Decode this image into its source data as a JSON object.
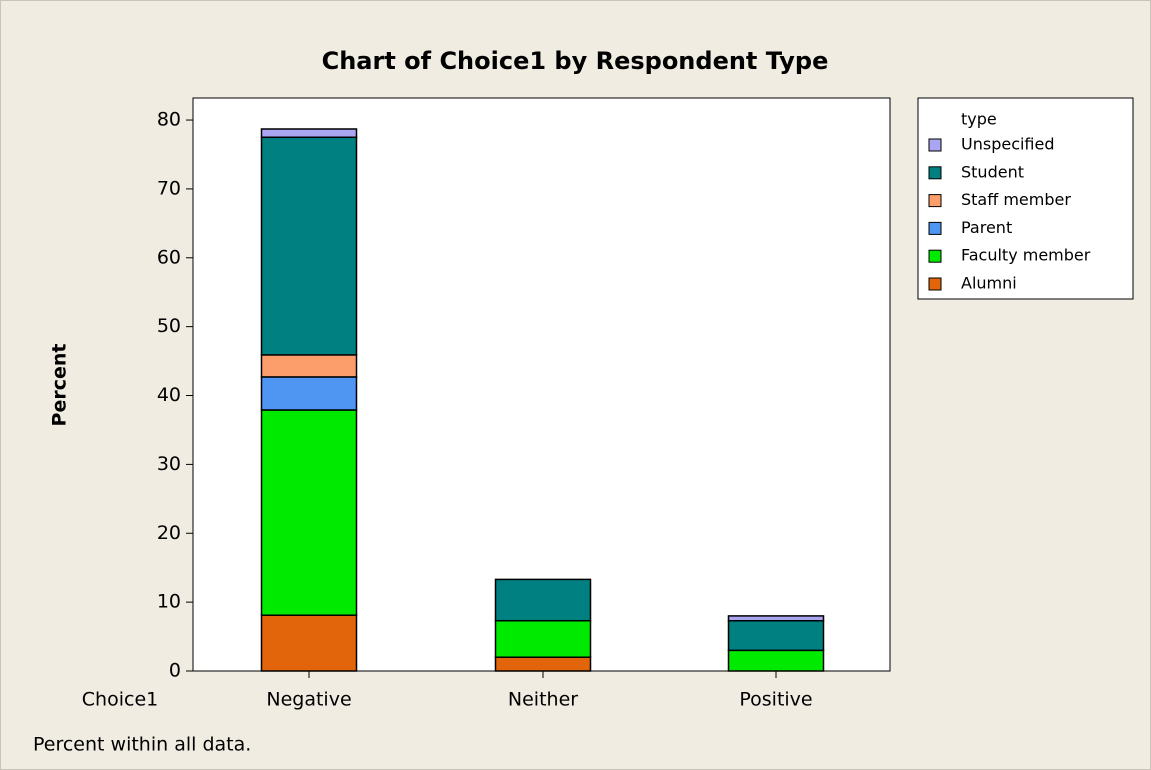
{
  "chart_data": {
    "type": "stacked_bar",
    "title": "Chart of Choice1 by Respondent Type",
    "x_label": "Choice1",
    "y_label": "Percent",
    "note": "Percent within all data.",
    "legend_title": "type",
    "legend": "right",
    "categories": [
      "Negative",
      "Neither",
      "Positive"
    ],
    "series": [
      {
        "name": "Alumni",
        "color": "#e2650b",
        "values": [
          8.1,
          2.0,
          0
        ]
      },
      {
        "name": "Faculty member",
        "color": "#00ea00",
        "values": [
          29.8,
          5.3,
          3.0
        ]
      },
      {
        "name": "Parent",
        "color": "#4f95f2",
        "values": [
          4.8,
          0,
          0
        ]
      },
      {
        "name": "Staff member",
        "color": "#fc9e6b",
        "values": [
          3.2,
          0,
          0
        ]
      },
      {
        "name": "Student",
        "color": "#008080",
        "values": [
          31.6,
          6.0,
          4.3
        ]
      },
      {
        "name": "Unspecified",
        "color": "#aaa6f2",
        "values": [
          1.2,
          0,
          0.7
        ]
      }
    ],
    "ylim": [
      0,
      83.2
    ],
    "yticks": [
      0,
      10,
      20,
      30,
      40,
      50,
      60,
      70,
      80
    ]
  }
}
